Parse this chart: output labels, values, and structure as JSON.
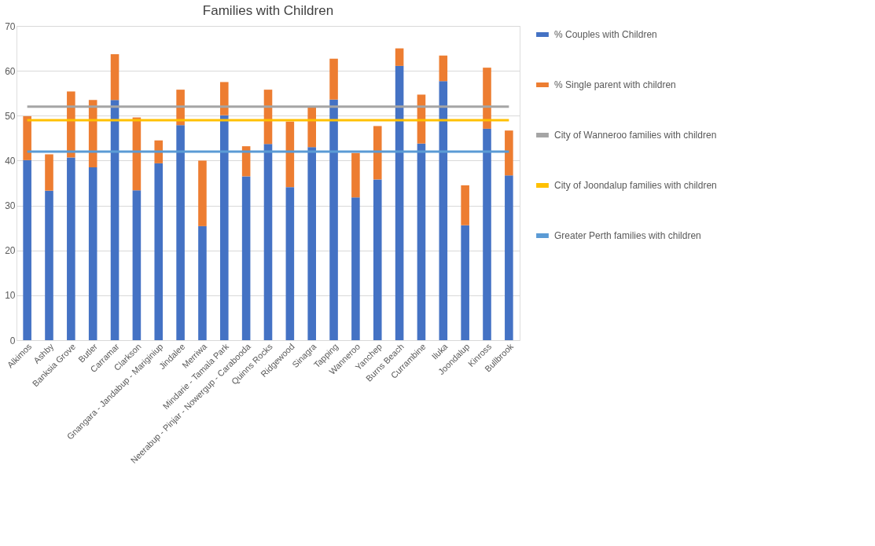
{
  "chart_data": {
    "type": "bar",
    "title": "Families with Children",
    "stacked": true,
    "categories": [
      "Alkimos",
      "Ashby",
      "Banksia Grove",
      "Butler",
      "Carramar",
      "Clarkson",
      "Gnangara - Jandabup - Mariginiup",
      "Jindalee",
      "Merriwa",
      "Mindarie - Tamala Park",
      "Neerabup - Pinjar - Nowergup - Carabooda",
      "Quinns Rocks",
      "Ridgewood",
      "Sinagra",
      "Tapping",
      "Wanneroo",
      "Yanchep",
      "Burns Beach",
      "Currambine",
      "Iluka",
      "Joondalup",
      "Kinross",
      "Bullbrook"
    ],
    "series": [
      {
        "name": "% Couples with Children",
        "color": "#4472c4",
        "values": [
          40.1,
          33.3,
          40.7,
          38.5,
          53.5,
          33.4,
          39.4,
          47.9,
          25.4,
          50.1,
          36.5,
          43.7,
          34.1,
          43.0,
          53.6,
          31.8,
          35.8,
          61.1,
          43.8,
          57.7,
          25.6,
          47.1,
          36.7
        ]
      },
      {
        "name": "% Single parent with children",
        "color": "#ed7d31",
        "values": [
          9.8,
          8.1,
          14.7,
          15.0,
          10.2,
          16.2,
          5.1,
          7.9,
          14.6,
          7.4,
          6.7,
          12.1,
          14.6,
          8.8,
          9.1,
          9.9,
          11.9,
          3.9,
          10.9,
          5.7,
          8.9,
          13.6,
          10.0
        ]
      },
      {
        "name": "City of Wanneroo families with children",
        "type": "line",
        "color": "#a5a5a5",
        "values": [
          52,
          52,
          52,
          52,
          52,
          52,
          52,
          52,
          52,
          52,
          52,
          52,
          52,
          52,
          52,
          52,
          52,
          52,
          52,
          52,
          52,
          52,
          52
        ]
      },
      {
        "name": "City of Joondalup families with children",
        "type": "line",
        "color": "#ffc000",
        "values": [
          49,
          49,
          49,
          49,
          49,
          49,
          49,
          49,
          49,
          49,
          49,
          49,
          49,
          49,
          49,
          49,
          49,
          49,
          49,
          49,
          49,
          49,
          49
        ]
      },
      {
        "name": "Greater Perth families with children",
        "type": "line",
        "color": "#5b9bd5",
        "values": [
          42,
          42,
          42,
          42,
          42,
          42,
          42,
          42,
          42,
          42,
          42,
          42,
          42,
          42,
          42,
          42,
          42,
          42,
          42,
          42,
          42,
          42,
          42
        ]
      }
    ],
    "ylim": [
      0,
      70
    ],
    "yticks": [
      0,
      10,
      20,
      30,
      40,
      50,
      60,
      70
    ],
    "grid": "y",
    "legend": "right"
  }
}
